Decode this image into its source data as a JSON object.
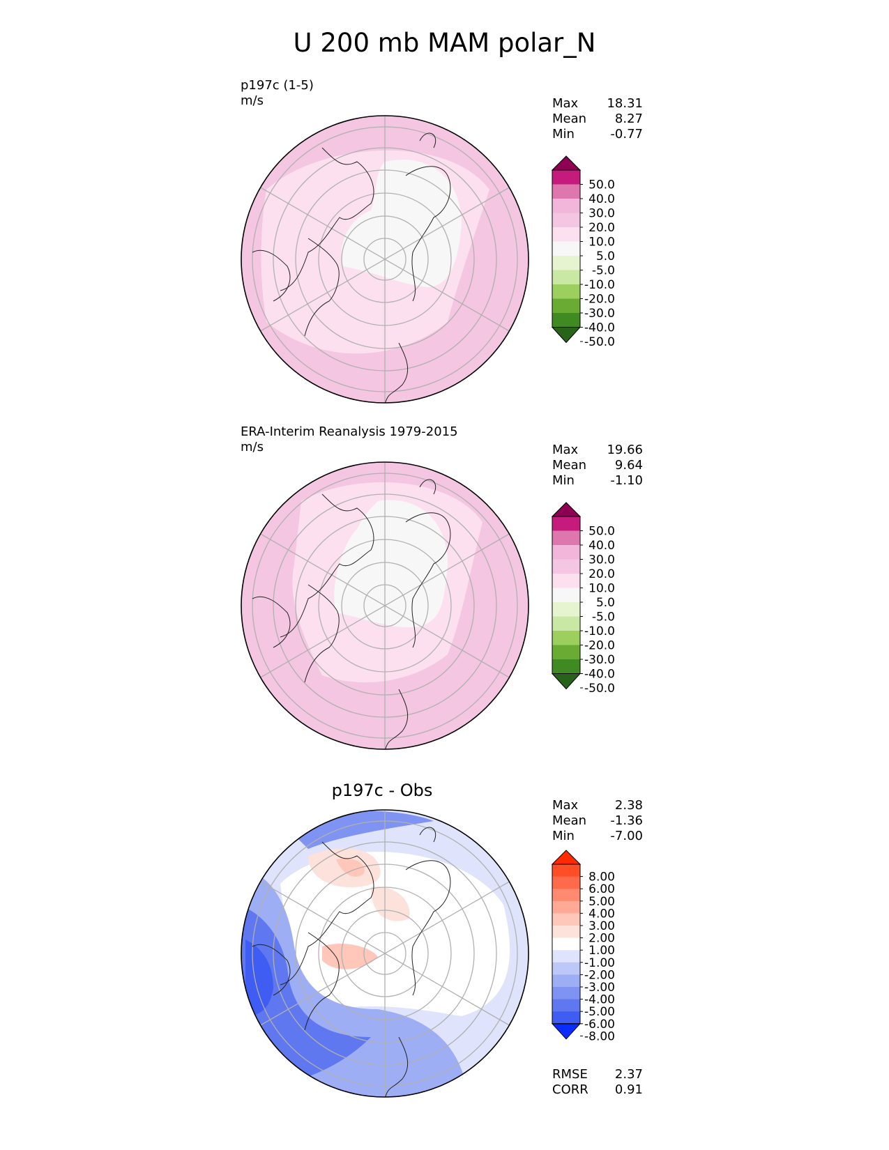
{
  "title": "U 200 mb MAM polar_N",
  "panels": [
    {
      "name": "model",
      "title_line1": "p197c (1-5)",
      "title_line2": "m/s",
      "stats": [
        {
          "label": "Max",
          "value": "18.31"
        },
        {
          "label": "Mean",
          "value": "8.27"
        },
        {
          "label": "Min",
          "value": "-0.77"
        }
      ],
      "colorbar": {
        "ticks": [
          "50.0",
          "40.0",
          "30.0",
          "20.0",
          "10.0",
          "5.0",
          "-5.0",
          "-10.0",
          "-20.0",
          "-30.0",
          "-40.0",
          "-50.0"
        ],
        "colors": [
          "#8e0152",
          "#c51b7d",
          "#de77ae",
          "#f1b6da",
          "#f4c6e1",
          "#fde0ef",
          "#f7f7f7",
          "#e6f5d0",
          "#c8e8a3",
          "#9dcf5f",
          "#6aab34",
          "#3f8a23",
          "#276419"
        ]
      }
    },
    {
      "name": "obs",
      "title_line1": "ERA-Interim Reanalysis 1979-2015",
      "title_line2": "m/s",
      "stats": [
        {
          "label": "Max",
          "value": "19.66"
        },
        {
          "label": "Mean",
          "value": "9.64"
        },
        {
          "label": "Min",
          "value": "-1.10"
        }
      ],
      "colorbar": {
        "ticks": [
          "50.0",
          "40.0",
          "30.0",
          "20.0",
          "10.0",
          "5.0",
          "-5.0",
          "-10.0",
          "-20.0",
          "-30.0",
          "-40.0",
          "-50.0"
        ],
        "colors": [
          "#8e0152",
          "#c51b7d",
          "#de77ae",
          "#f1b6da",
          "#f4c6e1",
          "#fde0ef",
          "#f7f7f7",
          "#e6f5d0",
          "#c8e8a3",
          "#9dcf5f",
          "#6aab34",
          "#3f8a23",
          "#276419"
        ]
      }
    },
    {
      "name": "diff",
      "title_center": "p197c - Obs",
      "stats": [
        {
          "label": "Max",
          "value": "2.38"
        },
        {
          "label": "Mean",
          "value": "-1.36"
        },
        {
          "label": "Min",
          "value": "-7.00"
        }
      ],
      "colorbar": {
        "ticks": [
          "8.00",
          "6.00",
          "5.00",
          "4.00",
          "3.00",
          "2.00",
          "1.00",
          "-1.00",
          "-2.00",
          "-3.00",
          "-4.00",
          "-5.00",
          "-6.00",
          "-8.00"
        ],
        "colors": [
          "#ff2a00",
          "#ff4d26",
          "#ff6a4a",
          "#ff8a70",
          "#ffa996",
          "#ffc7ba",
          "#fde2dc",
          "#ffffff",
          "#dfe3fb",
          "#bec8f8",
          "#9eaef5",
          "#7f93f2",
          "#5f78ef",
          "#3f5cf3",
          "#0a2cff"
        ]
      }
    }
  ],
  "bottom_stats": [
    {
      "label": "RMSE",
      "value": "2.37"
    },
    {
      "label": "CORR",
      "value": "0.91"
    }
  ]
}
